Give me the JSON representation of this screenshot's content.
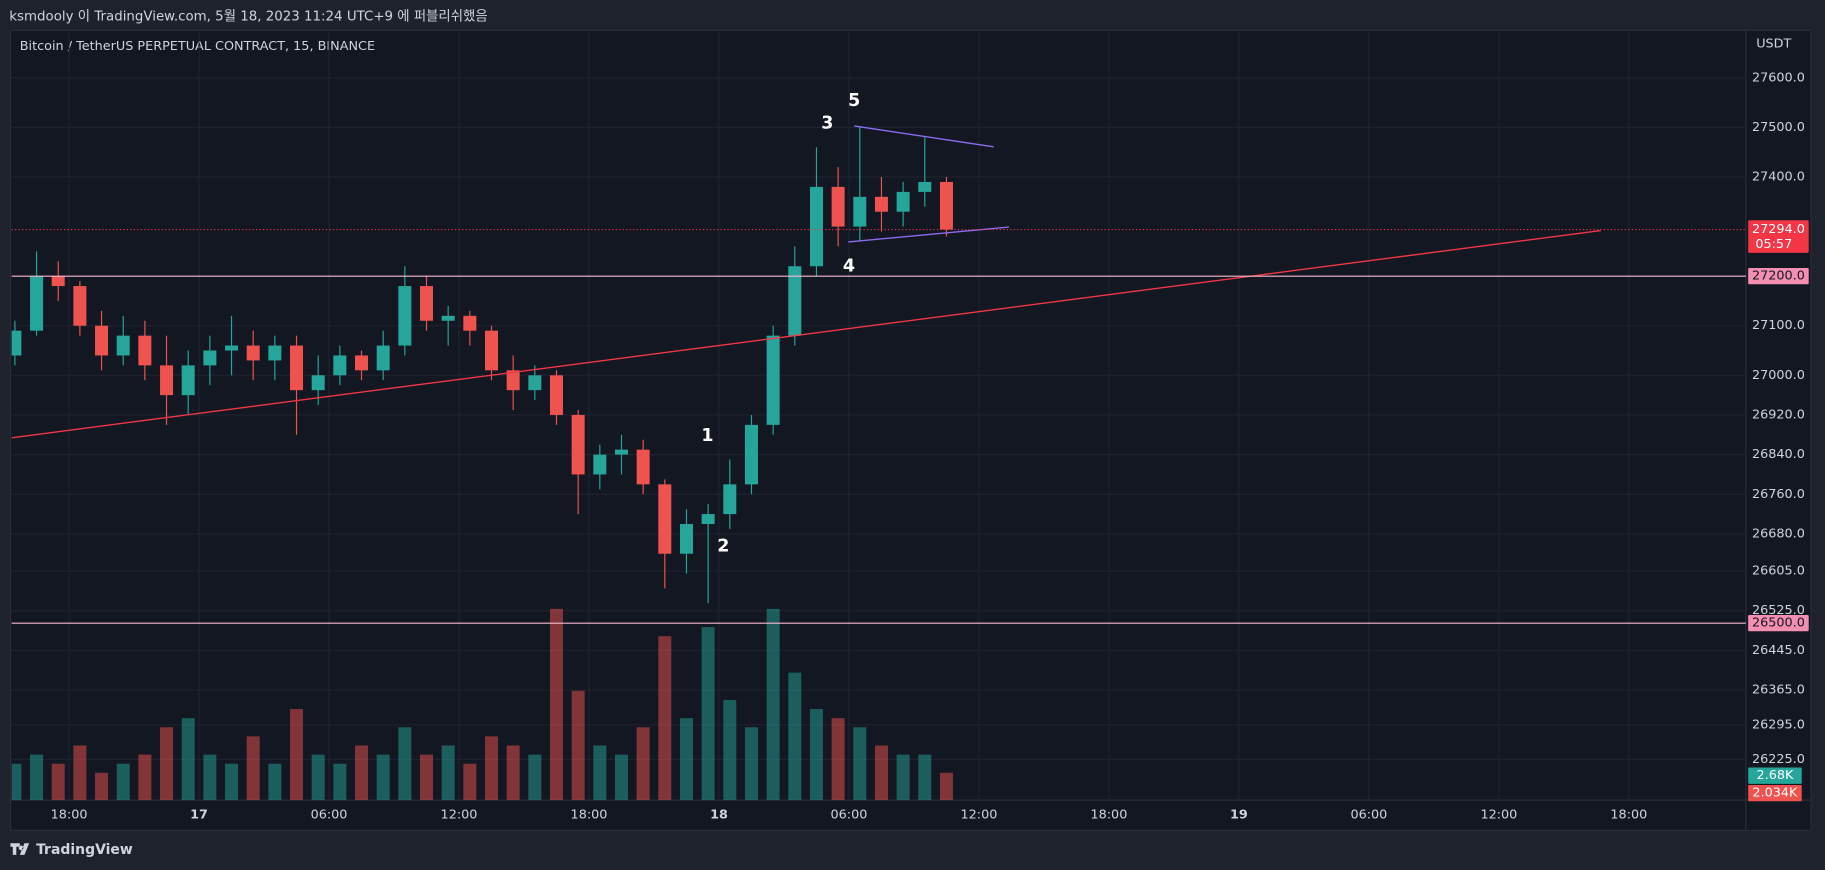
{
  "header": {
    "text": "ksmdooly 이 TradingView.com, 5월 18, 2023 11:24 UTC+9 에 퍼블리쉬했음"
  },
  "footer": {
    "brand": "TradingView"
  },
  "chart_data": {
    "type": "candlestick",
    "title": "Bitcoin / TetherUS PERPETUAL CONTRACT, 15, BINANCE",
    "currency": "USDT",
    "up_color": "#26a69a",
    "down_color": "#ef5350",
    "x": [
      -8.5,
      -7.5,
      -6.5,
      -5.5,
      -4.5,
      -3.5,
      -2.5,
      -1.5,
      -0.5,
      0.5,
      1.5,
      2.5,
      3.5,
      4.5,
      5.5,
      6.5,
      7.5,
      8.5,
      9.5,
      10.5,
      11.5,
      12.5,
      13.5,
      14.5,
      15.5,
      16.5,
      17.5,
      18.5,
      19.5,
      20.5,
      21.5,
      22.5,
      23.5,
      24.5,
      25.5,
      26.5,
      27.5,
      28.5,
      29.5,
      30.5,
      31.5,
      32.5,
      33.5,
      34.5
    ],
    "open": [
      27040,
      27090,
      27200,
      27180,
      27100,
      27040,
      27080,
      27020,
      26960,
      27020,
      27050,
      27060,
      27030,
      27060,
      26970,
      27000,
      27040,
      27010,
      27060,
      27180,
      27110,
      27120,
      27090,
      27010,
      26970,
      27000,
      26920,
      26800,
      26840,
      26850,
      26780,
      26640,
      26700,
      26720,
      26780,
      26900,
      27080,
      27220,
      27380,
      27300,
      27360,
      27330,
      27370,
      27390
    ],
    "high": [
      27110,
      27250,
      27230,
      27190,
      27130,
      27120,
      27110,
      27080,
      27050,
      27080,
      27120,
      27090,
      27080,
      27080,
      27040,
      27060,
      27050,
      27090,
      27220,
      27200,
      27140,
      27130,
      27100,
      27040,
      27020,
      27010,
      26930,
      26860,
      26880,
      26870,
      26790,
      26730,
      26740,
      26830,
      26920,
      27100,
      27260,
      27460,
      27420,
      27500,
      27400,
      27390,
      27480,
      27400
    ],
    "low": [
      27020,
      27080,
      27150,
      27080,
      27010,
      27020,
      26990,
      26900,
      26920,
      26980,
      27000,
      26990,
      26990,
      26880,
      26940,
      26980,
      26990,
      26990,
      27040,
      27090,
      27060,
      27060,
      26990,
      26930,
      26950,
      26900,
      26720,
      26770,
      26800,
      26760,
      26570,
      26600,
      26540,
      26690,
      26760,
      26880,
      27060,
      27200,
      27260,
      27270,
      27290,
      27300,
      27340,
      27280
    ],
    "close": [
      27090,
      27200,
      27180,
      27100,
      27040,
      27080,
      27020,
      26960,
      27020,
      27050,
      27060,
      27030,
      27060,
      26970,
      27000,
      27040,
      27010,
      27060,
      27180,
      27110,
      27120,
      27090,
      27010,
      26970,
      27000,
      26920,
      26800,
      26840,
      26850,
      26780,
      26640,
      26700,
      26720,
      26780,
      26900,
      27080,
      27220,
      27380,
      27300,
      27360,
      27330,
      27370,
      27390,
      27294
    ],
    "volume": [
      4,
      5,
      4,
      6,
      3,
      4,
      5,
      8,
      9,
      5,
      4,
      7,
      4,
      10,
      5,
      4,
      6,
      5,
      8,
      5,
      6,
      4,
      7,
      6,
      5,
      21,
      12,
      6,
      5,
      8,
      18,
      9,
      19,
      11,
      8,
      21,
      14,
      10,
      9,
      8,
      6,
      5,
      5,
      3
    ],
    "volume_ylim": [
      0,
      21.1
    ],
    "volume_labels": [
      {
        "value": 2.68,
        "label": "2.68K",
        "color": "#26a69a"
      },
      {
        "value": 2.034,
        "label": "2.034K",
        "color": "#ef5350"
      }
    ],
    "xlim": [
      -8.65,
      71.4
    ],
    "xticks": [
      {
        "value": -6,
        "label": "18:00"
      },
      {
        "value": 0,
        "label": "17"
      },
      {
        "value": 6,
        "label": "06:00"
      },
      {
        "value": 12,
        "label": "12:00"
      },
      {
        "value": 18,
        "label": "18:00"
      },
      {
        "value": 24,
        "label": "18"
      },
      {
        "value": 30,
        "label": "06:00"
      },
      {
        "value": 36,
        "label": "12:00"
      },
      {
        "value": 42,
        "label": "18:00"
      },
      {
        "value": 48,
        "label": "19"
      },
      {
        "value": 54,
        "label": "06:00"
      },
      {
        "value": 60,
        "label": "12:00"
      },
      {
        "value": 66,
        "label": "18:00"
      }
    ],
    "ylim": [
      26143,
      27696
    ],
    "yticks": [
      {
        "value": 27600,
        "label": "27600.0"
      },
      {
        "value": 27500,
        "label": "27500.0"
      },
      {
        "value": 27400,
        "label": "27400.0"
      },
      {
        "value": 27100,
        "label": "27100.0"
      },
      {
        "value": 27000,
        "label": "27000.0"
      },
      {
        "value": 26920,
        "label": "26920.0"
      },
      {
        "value": 26840,
        "label": "26840.0"
      },
      {
        "value": 26760,
        "label": "26760.0"
      },
      {
        "value": 26680,
        "label": "26680.0"
      },
      {
        "value": 26605,
        "label": "26605.0"
      },
      {
        "value": 26525,
        "label": "26525.0"
      },
      {
        "value": 26445,
        "label": "26445.0"
      },
      {
        "value": 26365,
        "label": "26365.0"
      },
      {
        "value": 26295,
        "label": "26295.0"
      },
      {
        "value": 26225,
        "label": "26225.0"
      }
    ],
    "grid": true,
    "horizontal_lines": [
      {
        "value": 27200,
        "label": "27200.0"
      },
      {
        "value": 26500,
        "label": "26500.0"
      }
    ],
    "last_price": {
      "value": 27294,
      "label": "27294.0",
      "countdown": "05:57"
    },
    "trendlines": [
      {
        "color": "#f23645",
        "x": [
          -8.65,
          64.7
        ],
        "y": [
          26874,
          27292
        ]
      },
      {
        "color": "#8c6cf0",
        "x": [
          30.24,
          36.68
        ],
        "y": [
          27503,
          27461
        ]
      },
      {
        "color": "#8c6cf0",
        "x": [
          29.97,
          37.38
        ],
        "y": [
          27269,
          27299
        ]
      }
    ],
    "annotations": [
      {
        "text": "1",
        "x": 23.47,
        "y": 26878
      },
      {
        "text": "2",
        "x": 24.2,
        "y": 26655
      },
      {
        "text": "3",
        "x": 29.0,
        "y": 27508
      },
      {
        "text": "4",
        "x": 30.0,
        "y": 27219
      },
      {
        "text": "5",
        "x": 30.24,
        "y": 27553
      }
    ]
  }
}
